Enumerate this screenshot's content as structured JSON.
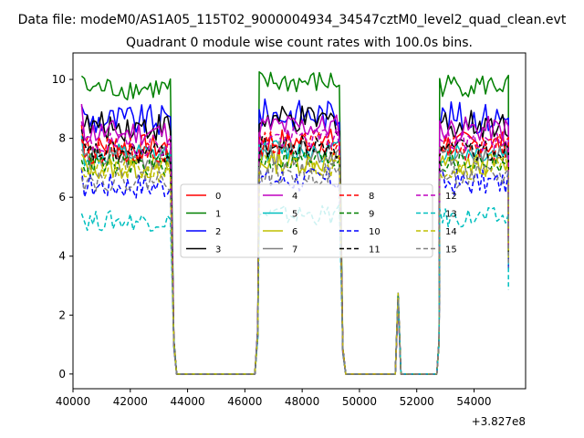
{
  "chart_data": {
    "type": "line",
    "suptitle": "Data file: modeM0/AS1A05_115T02_9000004934_34547cztM0_level2_quad_clean.evt",
    "title": "Quadrant 0 module wise count rates with 100.0s bins.",
    "xlabel": "",
    "ylabel": "",
    "x_offset_label": "+3.827e8",
    "xlim": [
      40000,
      55800
    ],
    "ylim": [
      -0.5,
      10.9
    ],
    "xticks": [
      40000,
      42000,
      44000,
      46000,
      48000,
      50000,
      52000,
      54000
    ],
    "xtick_labels": [
      "40000",
      "42000",
      "44000",
      "46000",
      "48000",
      "50000",
      "52000",
      "54000"
    ],
    "yticks": [
      0,
      2,
      4,
      6,
      8,
      10
    ],
    "ytick_labels": [
      "0",
      "2",
      "4",
      "6",
      "8",
      "10"
    ],
    "bin_seconds": 100,
    "on_intervals": [
      [
        40300,
        43400
      ],
      [
        46500,
        49300
      ],
      [
        52800,
        55200
      ]
    ],
    "spike": {
      "x": 51350,
      "peak": 2.75
    },
    "legend": {
      "placement": "center",
      "columns": 4
    },
    "series": [
      {
        "name": "0",
        "color": "#ff0000",
        "dash": "solid",
        "level": 7.7,
        "amp": 0.45,
        "start": 8.4
      },
      {
        "name": "1",
        "color": "#008000",
        "dash": "solid",
        "level": 9.7,
        "amp": 0.4,
        "start": 10.2
      },
      {
        "name": "2",
        "color": "#0000ff",
        "dash": "solid",
        "level": 8.6,
        "amp": 0.55,
        "start": 9.4
      },
      {
        "name": "3",
        "color": "#000000",
        "dash": "solid",
        "level": 8.4,
        "amp": 0.5,
        "start": 8.9
      },
      {
        "name": "4",
        "color": "#bf00bf",
        "dash": "solid",
        "level": 8.2,
        "amp": 0.45,
        "start": 8.8
      },
      {
        "name": "5",
        "color": "#00bfbf",
        "dash": "solid",
        "level": 7.4,
        "amp": 0.4,
        "start": 7.9
      },
      {
        "name": "6",
        "color": "#bfbf00",
        "dash": "solid",
        "level": 7.0,
        "amp": 0.4,
        "start": 7.4
      },
      {
        "name": "7",
        "color": "#808080",
        "dash": "solid",
        "level": 7.3,
        "amp": 0.4,
        "start": 7.7
      },
      {
        "name": "8",
        "color": "#ff0000",
        "dash": "dashed",
        "level": 7.6,
        "amp": 0.45,
        "start": 8.2
      },
      {
        "name": "9",
        "color": "#008000",
        "dash": "dashed",
        "level": 7.1,
        "amp": 0.4,
        "start": 7.6
      },
      {
        "name": "10",
        "color": "#0000ff",
        "dash": "dashed",
        "level": 6.4,
        "amp": 0.45,
        "start": 6.6
      },
      {
        "name": "11",
        "color": "#000000",
        "dash": "dashed",
        "level": 7.5,
        "amp": 0.4,
        "start": 8.1
      },
      {
        "name": "12",
        "color": "#bf00bf",
        "dash": "dashed",
        "level": 7.8,
        "amp": 0.4,
        "start": 8.5
      },
      {
        "name": "13",
        "color": "#00bfbf",
        "dash": "dashed",
        "level": 5.2,
        "amp": 0.35,
        "start": 5.5
      },
      {
        "name": "14",
        "color": "#bfbf00",
        "dash": "dashed",
        "level": 6.9,
        "amp": 0.4,
        "start": 7.2
      },
      {
        "name": "15",
        "color": "#808080",
        "dash": "dashed",
        "level": 6.6,
        "amp": 0.4,
        "start": 7.0
      }
    ]
  }
}
